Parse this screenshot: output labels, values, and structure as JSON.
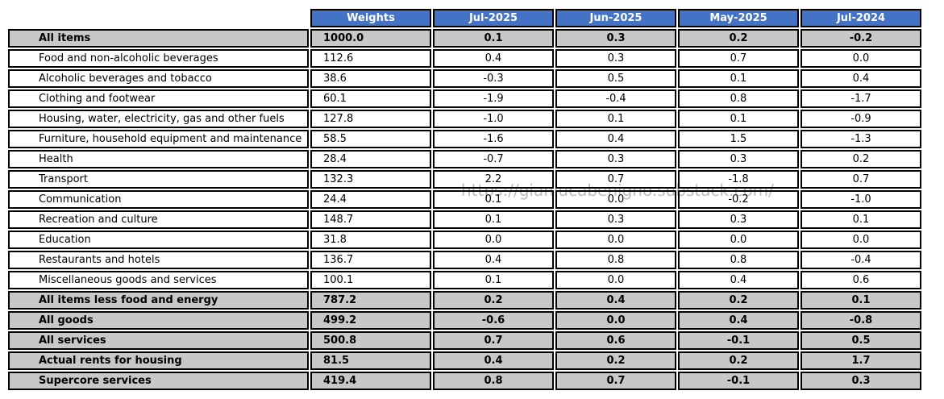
{
  "watermark": "https://gianlucabenigno.substack.com/",
  "colors": {
    "header_bg": "#4472C4",
    "header_text": "#FFFFFF",
    "highlight_row_bg": "#C8C8C8",
    "border": "#000000",
    "watermark_text": "#A9A9A9"
  },
  "chart_data": {
    "type": "table",
    "columns": [
      "Weights",
      "Jul-2025",
      "Jun-2025",
      "May-2025",
      "Jul-2024"
    ],
    "rows": [
      {
        "label": "All items",
        "bold": true,
        "values": [
          "1000.0",
          "0.1",
          "0.3",
          "0.2",
          "-0.2"
        ]
      },
      {
        "label": "Food and non-alcoholic beverages",
        "bold": false,
        "values": [
          "112.6",
          "0.4",
          "0.3",
          "0.7",
          "0.0"
        ]
      },
      {
        "label": "Alcoholic beverages and tobacco",
        "bold": false,
        "values": [
          "38.6",
          "-0.3",
          "0.5",
          "0.1",
          "0.4"
        ]
      },
      {
        "label": "Clothing and footwear",
        "bold": false,
        "values": [
          "60.1",
          "-1.9",
          "-0.4",
          "0.8",
          "-1.7"
        ]
      },
      {
        "label": "Housing, water, electricity, gas and other fuels",
        "bold": false,
        "values": [
          "127.8",
          "-1.0",
          "0.1",
          "0.1",
          "-0.9"
        ]
      },
      {
        "label": "Furniture, household equipment and maintenance",
        "bold": false,
        "values": [
          "58.5",
          "-1.6",
          "0.4",
          "1.5",
          "-1.3"
        ]
      },
      {
        "label": "Health",
        "bold": false,
        "values": [
          "28.4",
          "-0.7",
          "0.3",
          "0.3",
          "0.2"
        ]
      },
      {
        "label": "Transport",
        "bold": false,
        "values": [
          "132.3",
          "2.2",
          "0.7",
          "-1.8",
          "0.7"
        ]
      },
      {
        "label": "Communication",
        "bold": false,
        "values": [
          "24.4",
          "0.1",
          "0.0",
          "-0.2",
          "-1.0"
        ]
      },
      {
        "label": "Recreation and culture",
        "bold": false,
        "values": [
          "148.7",
          "0.1",
          "0.3",
          "0.3",
          "0.1"
        ]
      },
      {
        "label": "Education",
        "bold": false,
        "values": [
          "31.8",
          "0.0",
          "0.0",
          "0.0",
          "0.0"
        ]
      },
      {
        "label": "Restaurants and hotels",
        "bold": false,
        "values": [
          "136.7",
          "0.4",
          "0.8",
          "0.8",
          "-0.4"
        ]
      },
      {
        "label": "Miscellaneous goods and services",
        "bold": false,
        "values": [
          "100.1",
          "0.1",
          "0.0",
          "0.4",
          "0.6"
        ]
      },
      {
        "label": "All items less food and energy",
        "bold": true,
        "values": [
          "787.2",
          "0.2",
          "0.4",
          "0.2",
          "0.1"
        ]
      },
      {
        "label": "All goods",
        "bold": true,
        "values": [
          "499.2",
          "-0.6",
          "0.0",
          "0.4",
          "-0.8"
        ]
      },
      {
        "label": "All services",
        "bold": true,
        "values": [
          "500.8",
          "0.7",
          "0.6",
          "-0.1",
          "0.5"
        ]
      },
      {
        "label": "Actual rents for housing",
        "bold": true,
        "values": [
          "81.5",
          "0.4",
          "0.2",
          "0.2",
          "1.7"
        ]
      },
      {
        "label": "Supercore services",
        "bold": true,
        "values": [
          "419.4",
          "0.8",
          "0.7",
          "-0.1",
          "0.3"
        ]
      }
    ]
  }
}
